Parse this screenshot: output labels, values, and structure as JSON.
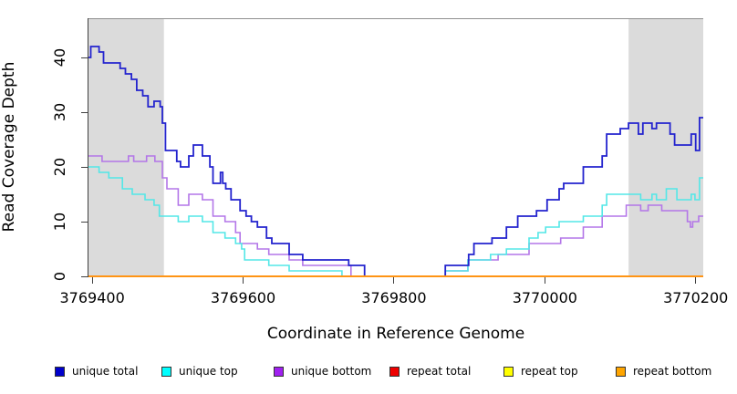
{
  "figure": {
    "background": "#ffffff",
    "band_color": "#dbdbdb",
    "frame_top_color": "#909090",
    "axis_color": "#404040"
  },
  "chart_data": {
    "type": "line",
    "subtype": "step-after",
    "title": "",
    "xlabel": "Coordinate in Reference Genome",
    "ylabel": "Read Coverage Depth",
    "xlim": [
      3769395,
      3770210
    ],
    "ylim": [
      0,
      47
    ],
    "x_ticks": [
      3769400,
      3769600,
      3769800,
      3770000,
      3770200
    ],
    "y_ticks": [
      0,
      10,
      20,
      30,
      40
    ],
    "grid": false,
    "legend_position": "bottom",
    "shaded_regions": [
      {
        "from": 3769395,
        "to": 3769495
      },
      {
        "from": 3770111,
        "to": 3770210
      }
    ],
    "series": [
      {
        "name": "unique total",
        "line_color": "#2323ce",
        "legend_fill": "#0000cc",
        "width": 1.8,
        "steps": [
          [
            3769395,
            40
          ],
          [
            3769398,
            42
          ],
          [
            3769409,
            41
          ],
          [
            3769415,
            39
          ],
          [
            3769437,
            38
          ],
          [
            3769444,
            37
          ],
          [
            3769452,
            36
          ],
          [
            3769459,
            34
          ],
          [
            3769467,
            33
          ],
          [
            3769474,
            31
          ],
          [
            3769482,
            32
          ],
          [
            3769490,
            31
          ],
          [
            3769493,
            28
          ],
          [
            3769497,
            23
          ],
          [
            3769512,
            21
          ],
          [
            3769517,
            20
          ],
          [
            3769528,
            22
          ],
          [
            3769534,
            24
          ],
          [
            3769546,
            22
          ],
          [
            3769556,
            20
          ],
          [
            3769560,
            17
          ],
          [
            3769570,
            19
          ],
          [
            3769573,
            17
          ],
          [
            3769577,
            16
          ],
          [
            3769584,
            14
          ],
          [
            3769596,
            12
          ],
          [
            3769604,
            11
          ],
          [
            3769611,
            10
          ],
          [
            3769619,
            9
          ],
          [
            3769631,
            7
          ],
          [
            3769638,
            6
          ],
          [
            3769661,
            4
          ],
          [
            3769679,
            3
          ],
          [
            3769740,
            2
          ],
          [
            3769761,
            0
          ],
          [
            3769868,
            2
          ],
          [
            3769899,
            4
          ],
          [
            3769906,
            6
          ],
          [
            3769930,
            7
          ],
          [
            3769949,
            9
          ],
          [
            3769964,
            11
          ],
          [
            3769989,
            12
          ],
          [
            3770003,
            14
          ],
          [
            3770019,
            16
          ],
          [
            3770025,
            17
          ],
          [
            3770051,
            20
          ],
          [
            3770076,
            22
          ],
          [
            3770082,
            26
          ],
          [
            3770100,
            27
          ],
          [
            3770111,
            28
          ],
          [
            3770124,
            26
          ],
          [
            3770130,
            28
          ],
          [
            3770142,
            27
          ],
          [
            3770148,
            28
          ],
          [
            3770166,
            26
          ],
          [
            3770172,
            24
          ],
          [
            3770194,
            26
          ],
          [
            3770200,
            23
          ],
          [
            3770205,
            29
          ]
        ]
      },
      {
        "name": "unique top",
        "line_color": "#53e7e7",
        "legend_fill": "#00ffff",
        "width": 1.6,
        "steps": [
          [
            3769395,
            20
          ],
          [
            3769409,
            19
          ],
          [
            3769422,
            18
          ],
          [
            3769440,
            16
          ],
          [
            3769453,
            15
          ],
          [
            3769470,
            14
          ],
          [
            3769482,
            13
          ],
          [
            3769489,
            11
          ],
          [
            3769514,
            10
          ],
          [
            3769528,
            11
          ],
          [
            3769546,
            10
          ],
          [
            3769560,
            8
          ],
          [
            3769576,
            7
          ],
          [
            3769590,
            6
          ],
          [
            3769598,
            5
          ],
          [
            3769602,
            3
          ],
          [
            3769634,
            2
          ],
          [
            3769661,
            1
          ],
          [
            3769731,
            0
          ],
          [
            3769868,
            1
          ],
          [
            3769898,
            3
          ],
          [
            3769928,
            4
          ],
          [
            3769949,
            5
          ],
          [
            3769979,
            7
          ],
          [
            3769991,
            8
          ],
          [
            3770001,
            9
          ],
          [
            3770019,
            10
          ],
          [
            3770051,
            11
          ],
          [
            3770076,
            13
          ],
          [
            3770082,
            15
          ],
          [
            3770127,
            14
          ],
          [
            3770142,
            15
          ],
          [
            3770148,
            14
          ],
          [
            3770161,
            16
          ],
          [
            3770175,
            14
          ],
          [
            3770194,
            15
          ],
          [
            3770199,
            14
          ],
          [
            3770205,
            18
          ]
        ]
      },
      {
        "name": "unique bottom",
        "line_color": "#b376e8",
        "legend_fill": "#a020f0",
        "width": 1.6,
        "steps": [
          [
            3769395,
            22
          ],
          [
            3769413,
            21
          ],
          [
            3769448,
            22
          ],
          [
            3769455,
            21
          ],
          [
            3769472,
            22
          ],
          [
            3769483,
            21
          ],
          [
            3769493,
            18
          ],
          [
            3769499,
            16
          ],
          [
            3769514,
            13
          ],
          [
            3769528,
            15
          ],
          [
            3769546,
            14
          ],
          [
            3769560,
            11
          ],
          [
            3769576,
            10
          ],
          [
            3769590,
            8
          ],
          [
            3769596,
            6
          ],
          [
            3769619,
            5
          ],
          [
            3769634,
            4
          ],
          [
            3769661,
            3
          ],
          [
            3769679,
            2
          ],
          [
            3769743,
            0
          ],
          [
            3769868,
            1
          ],
          [
            3769898,
            3
          ],
          [
            3769938,
            4
          ],
          [
            3769979,
            6
          ],
          [
            3770021,
            7
          ],
          [
            3770051,
            9
          ],
          [
            3770076,
            11
          ],
          [
            3770108,
            13
          ],
          [
            3770127,
            12
          ],
          [
            3770137,
            13
          ],
          [
            3770155,
            12
          ],
          [
            3770189,
            10
          ],
          [
            3770193,
            9
          ],
          [
            3770196,
            10
          ],
          [
            3770204,
            11
          ]
        ]
      },
      {
        "name": "repeat total",
        "line_color": "#cc0000",
        "legend_fill": "#ee0000",
        "width": 1.6,
        "steps": [
          [
            3769395,
            0
          ]
        ]
      },
      {
        "name": "repeat top",
        "line_color": "#eeee00",
        "legend_fill": "#ffff00",
        "width": 1.6,
        "steps": [
          [
            3769395,
            0
          ]
        ]
      },
      {
        "name": "repeat bottom",
        "line_color": "#ff9414",
        "legend_fill": "#ffa500",
        "width": 2,
        "steps": [
          [
            3769395,
            0
          ]
        ]
      }
    ]
  }
}
